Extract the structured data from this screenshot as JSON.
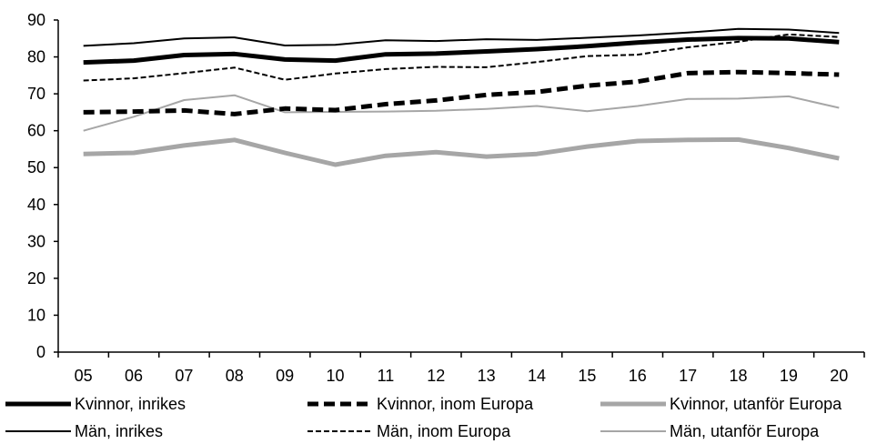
{
  "chart_data": {
    "type": "line",
    "categories": [
      "05",
      "06",
      "07",
      "08",
      "09",
      "10",
      "11",
      "12",
      "13",
      "14",
      "15",
      "16",
      "17",
      "18",
      "19",
      "20"
    ],
    "yticks": [
      "0",
      "10",
      "20",
      "30",
      "40",
      "50",
      "60",
      "70",
      "80",
      "90"
    ],
    "ylim": [
      0,
      90
    ],
    "grid": false,
    "legend_position": "bottom",
    "series": [
      {
        "name": "Kvinnor, inrikes",
        "color": "#000000",
        "style": "solid-thick",
        "values": [
          78.5,
          79,
          80.5,
          80.8,
          79.3,
          79,
          80.7,
          80.9,
          81.5,
          82.1,
          82.9,
          83.9,
          84.7,
          85.1,
          85,
          84
        ]
      },
      {
        "name": "Kvinnor, inom Europa",
        "color": "#000000",
        "style": "dashed-thick",
        "values": [
          65,
          65.2,
          65.5,
          64.5,
          66,
          65.6,
          67.2,
          68.2,
          69.7,
          70.5,
          72.2,
          73.3,
          75.6,
          75.9,
          75.6,
          75.2
        ]
      },
      {
        "name": "Kvinnor, utanför Europa",
        "color": "#a6a6a6",
        "style": "solid-thick",
        "values": [
          53.7,
          54,
          56,
          57.5,
          54,
          50.8,
          53.2,
          54.2,
          53,
          53.7,
          55.7,
          57.2,
          57.5,
          57.6,
          55.3,
          52.5
        ]
      },
      {
        "name": "Män, inrikes",
        "color": "#000000",
        "style": "solid-thin",
        "values": [
          83,
          83.7,
          85,
          85.3,
          83.1,
          83.3,
          84.5,
          84.3,
          84.8,
          84.6,
          85.2,
          85.8,
          86.6,
          87.6,
          87.4,
          86.5
        ]
      },
      {
        "name": "Män, inom Europa",
        "color": "#000000",
        "style": "dashed-thin",
        "values": [
          73.6,
          74.2,
          75.6,
          77.1,
          73.8,
          75.5,
          76.7,
          77.3,
          77.2,
          78.6,
          80.2,
          80.6,
          82.6,
          84.1,
          86.1,
          85.4
        ]
      },
      {
        "name": "Män, utanför Europa",
        "color": "#a6a6a6",
        "style": "solid-thin",
        "values": [
          60,
          63.8,
          68.3,
          69.6,
          65,
          65.1,
          65.2,
          65.4,
          65.9,
          66.7,
          65.3,
          66.7,
          68.6,
          68.7,
          69.3,
          66.2
        ]
      }
    ]
  }
}
